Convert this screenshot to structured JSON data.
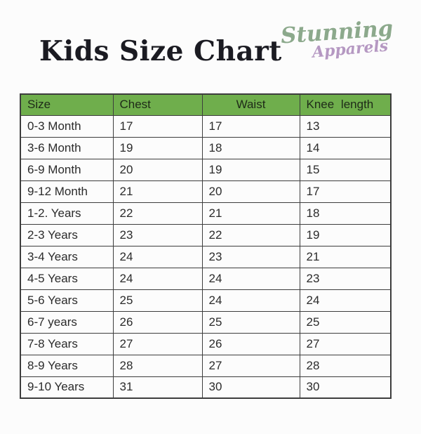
{
  "header": {
    "title": "Kids Size Chart",
    "logo": {
      "line1": "Stunning",
      "line2": "Apparels",
      "line1_color": "#8ca98c",
      "line2_color": "#b598c2"
    }
  },
  "table": {
    "header_bg": "#6fae4c",
    "border_color": "#3d3d3d",
    "columns": [
      "Size",
      "Chest",
      "Waist",
      "Knee length"
    ],
    "rows": [
      [
        "0-3 Month",
        "17",
        "17",
        "13"
      ],
      [
        "3-6 Month",
        "19",
        "18",
        "14"
      ],
      [
        "6-9 Month",
        "20",
        "19",
        "15"
      ],
      [
        "9-12 Month",
        "21",
        "20",
        "17"
      ],
      [
        "1-2. Years",
        "22",
        "21",
        "18"
      ],
      [
        "2-3 Years",
        "23",
        "22",
        "19"
      ],
      [
        "3-4 Years",
        "24",
        "23",
        "21"
      ],
      [
        "4-5 Years",
        "24",
        "24",
        "23"
      ],
      [
        "5-6 Years",
        "25",
        "24",
        "24"
      ],
      [
        "6-7 years",
        "26",
        "25",
        "25"
      ],
      [
        "7-8 Years",
        "27",
        "26",
        "27"
      ],
      [
        "8-9 Years",
        "28",
        "27",
        "28"
      ],
      [
        "9-10 Years",
        "31",
        "30",
        "30"
      ]
    ]
  }
}
